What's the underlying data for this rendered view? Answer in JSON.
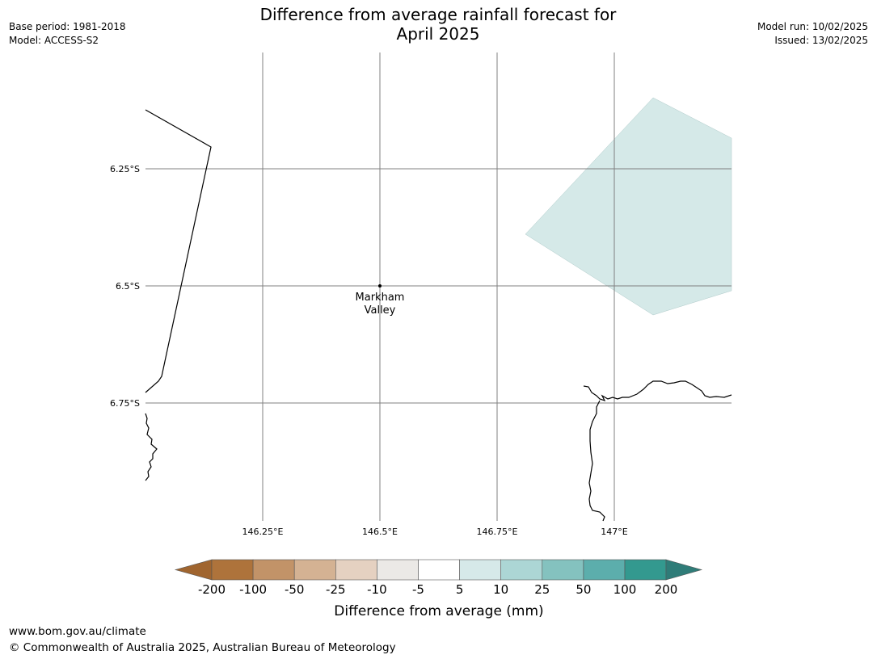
{
  "title_line1": "Difference from average rainfall forecast for",
  "title_line2": "April 2025",
  "meta_left": {
    "base_period": "Base period: 1981-2018",
    "model": "Model: ACCESS-S2"
  },
  "meta_right": {
    "model_run": "Model run: 10/02/2025",
    "issued": "Issued: 13/02/2025"
  },
  "map": {
    "lat_labels": [
      "6.25°S",
      "6.5°S",
      "6.75°S"
    ],
    "lon_labels": [
      "146.25°E",
      "146.5°E",
      "146.75°E",
      "147°E"
    ],
    "place_line1": "Markham",
    "place_line2": "Valley",
    "shaded_category": "5 to 10",
    "shaded_color": "#d5e9e8"
  },
  "colorbar": {
    "ticks": [
      "-200",
      "-100",
      "-50",
      "-25",
      "-10",
      "-5",
      "5",
      "10",
      "25",
      "50",
      "100",
      "200"
    ],
    "colors": [
      "#a0652f",
      "#ae733b",
      "#c29368",
      "#d4b293",
      "#e5d1c1",
      "#ebe9e6",
      "#ffffff",
      "#d6e9e9",
      "#acd6d5",
      "#84c2bf",
      "#5caeac",
      "#33998f",
      "#2f7c78"
    ],
    "label": "Difference from average (mm)"
  },
  "footer": {
    "line1": "www.bom.gov.au/climate",
    "line2": "© Commonwealth of Australia 2025, Australian Bureau of Meteorology"
  }
}
